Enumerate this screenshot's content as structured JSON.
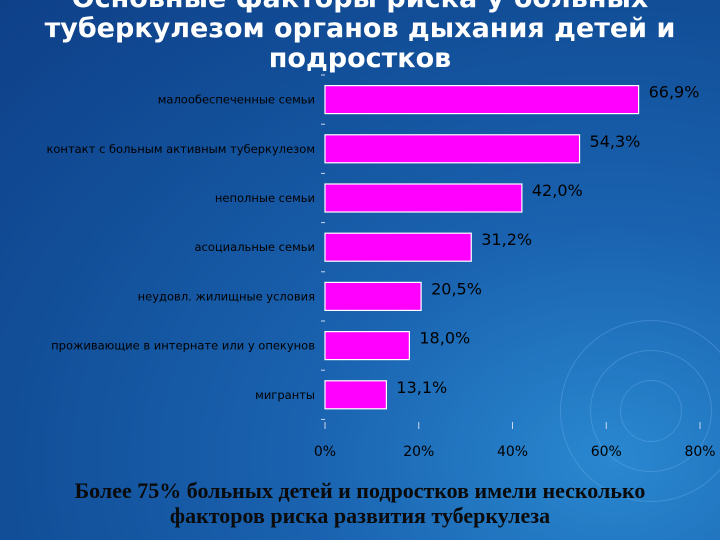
{
  "slide": {
    "title_lines": [
      "Основные факторы риска у больных",
      "туберкулезом органов дыхания детей и",
      "подростков"
    ],
    "footer_lines": [
      "Более 75% больных детей и подростков имели несколько",
      "факторов риска развития туберкулеза"
    ]
  },
  "chart_data": {
    "type": "bar",
    "orientation": "horizontal",
    "categories": [
      "малообеспеченные семьи",
      "контакт с больным активным туберкулезом",
      "неполные семьи",
      "асоциальные семьи",
      "неудовл. жилищные условия",
      "проживающие в интернате или у опекунов",
      "мигранты"
    ],
    "values": [
      66.9,
      54.3,
      42.0,
      31.2,
      20.5,
      18.0,
      13.1
    ],
    "value_labels": [
      "66,9%",
      "54,3%",
      "42,0%",
      "31,2%",
      "20,5%",
      "18,0%",
      "13,1%"
    ],
    "xlim": [
      0,
      80
    ],
    "x_ticks": [
      0,
      20,
      40,
      60,
      80
    ],
    "x_tick_labels": [
      "0%",
      "20%",
      "40%",
      "60%",
      "80%"
    ],
    "bar_color": "#ff00ff",
    "grid": false,
    "legend": "none"
  }
}
